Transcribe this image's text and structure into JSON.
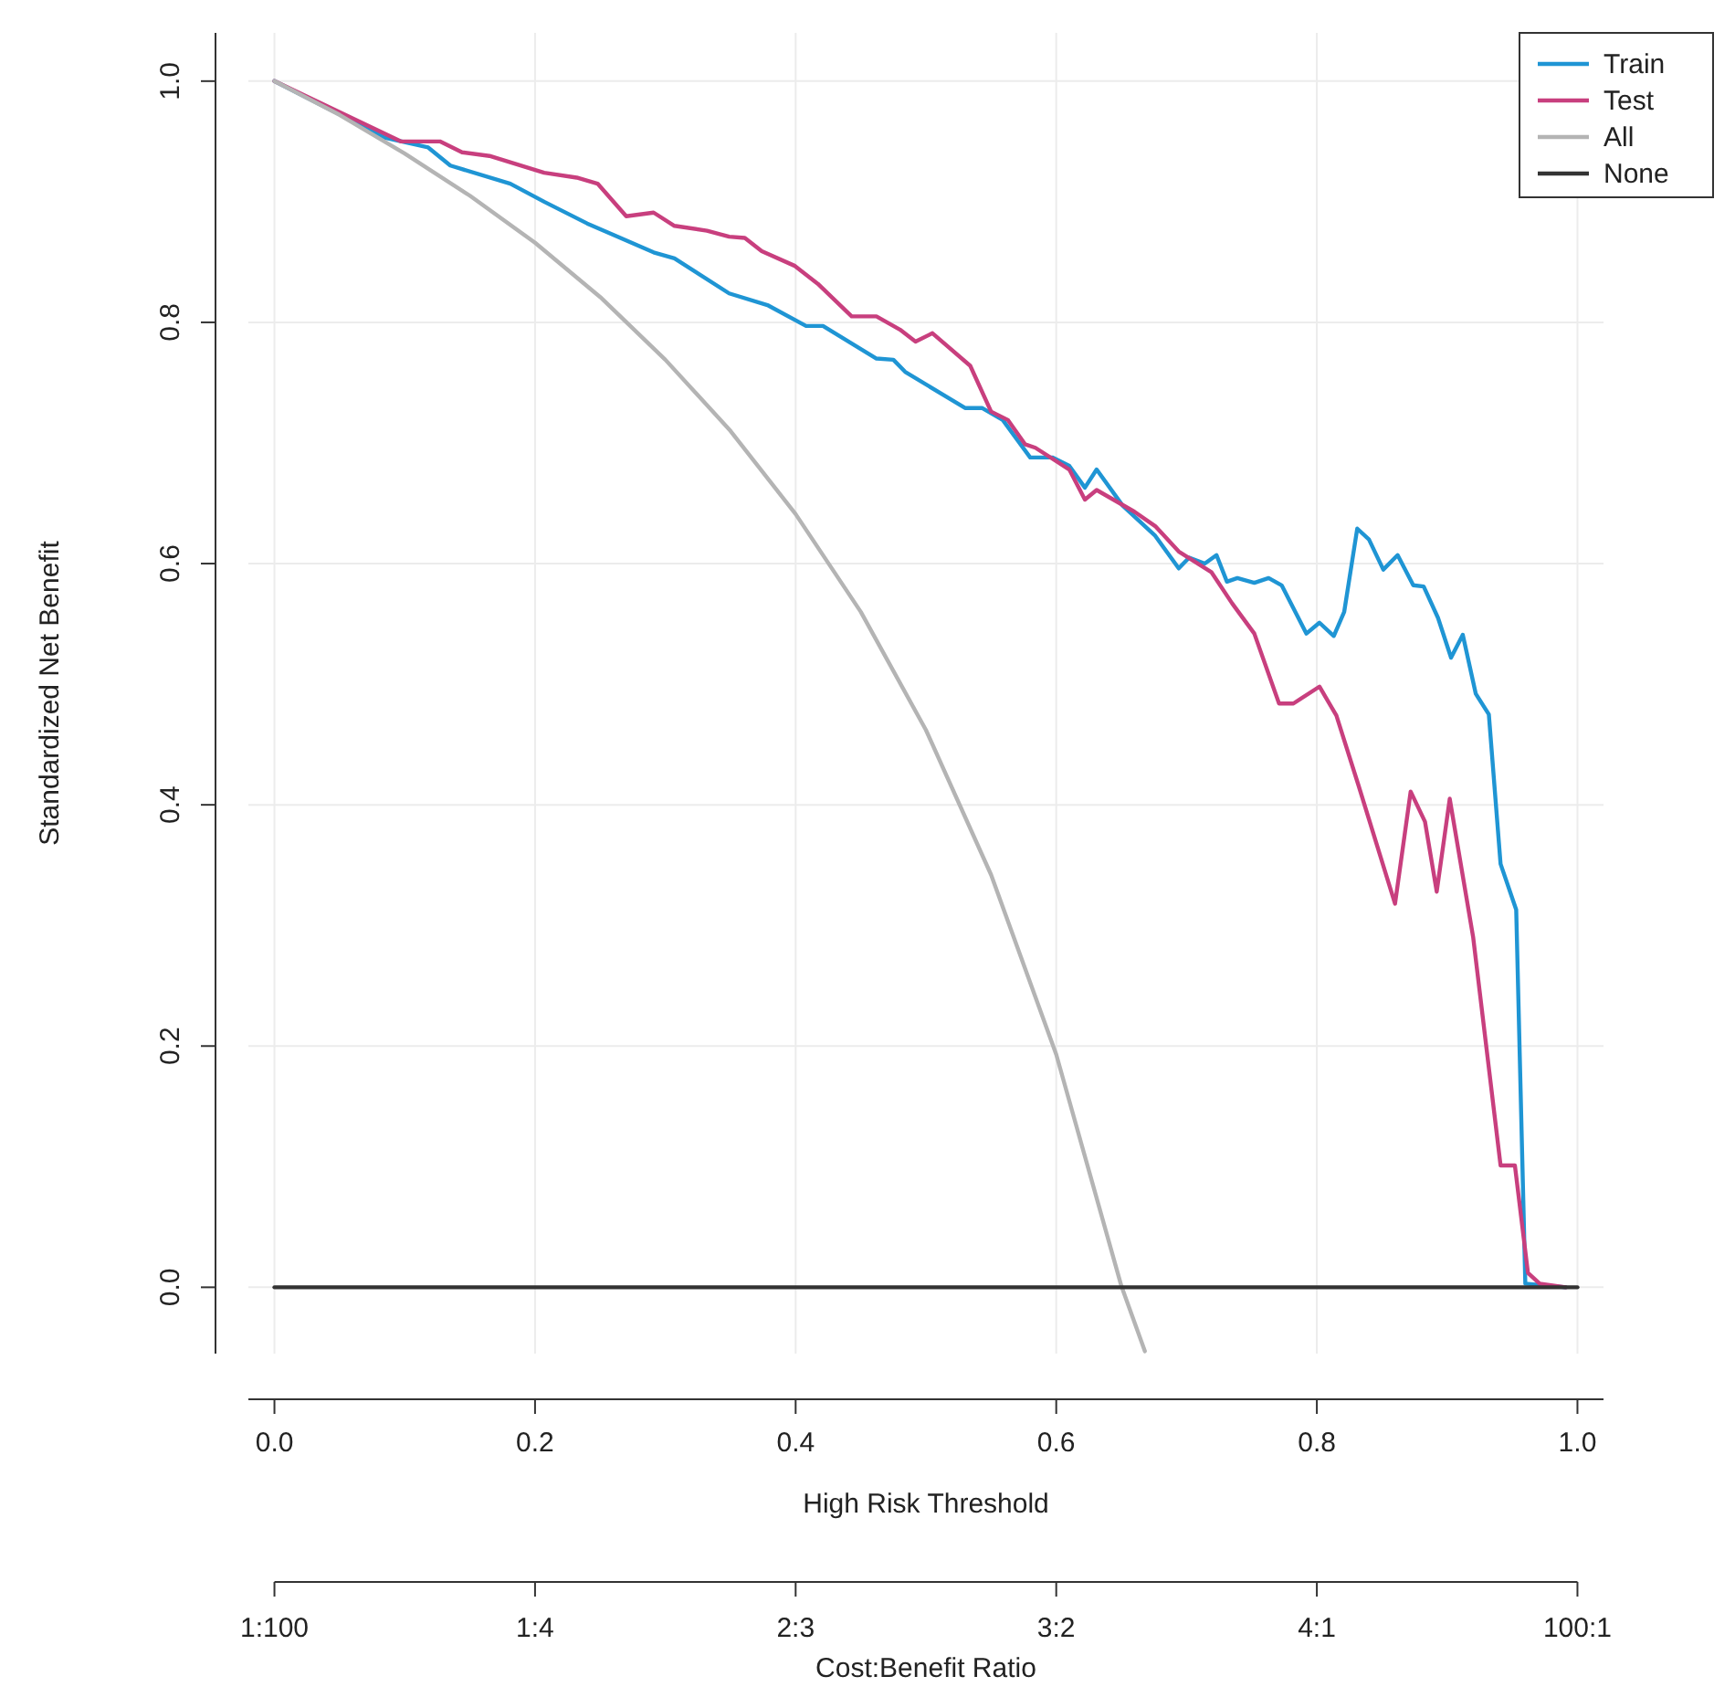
{
  "chart_data": {
    "type": "line",
    "xlabel": "High Risk Threshold",
    "ylabel": "Standardized Net Benefit",
    "xlim": [
      -0.02,
      1.02
    ],
    "xticks": [
      {
        "value": 0,
        "label": "0.0"
      },
      {
        "value": 0.2,
        "label": "0.2"
      },
      {
        "value": 0.4,
        "label": "0.4"
      },
      {
        "value": 0.6,
        "label": "0.6"
      },
      {
        "value": 0.8,
        "label": "0.8"
      },
      {
        "value": 1,
        "label": "1.0"
      }
    ],
    "annotations": [
      "1:100",
      "1:4",
      "2:3",
      "3:2",
      "4:1",
      "100:1",
      "Cost:Benefit Ratio"
    ],
    "ylim": [
      -0.055,
      1.04
    ],
    "yticks": [
      {
        "value": 0,
        "label": "0.0"
      },
      {
        "value": 0.2,
        "label": "0.2"
      },
      {
        "value": 0.4,
        "label": "0.4"
      },
      {
        "value": 0.6,
        "label": "0.6"
      },
      {
        "value": 0.8,
        "label": "0.8"
      },
      {
        "value": 1,
        "label": "1.0"
      }
    ],
    "grid": true,
    "legend": "top right",
    "series": [
      {
        "name": "Train",
        "color": "#1f95d4",
        "x": [
          0,
          0.085,
          0.118,
          0.135,
          0.181,
          0.207,
          0.24,
          0.291,
          0.307,
          0.349,
          0.379,
          0.408,
          0.421,
          0.462,
          0.475,
          0.484,
          0.53,
          0.543,
          0.559,
          0.58,
          0.597,
          0.61,
          0.622,
          0.631,
          0.651,
          0.676,
          0.694,
          0.702,
          0.714,
          0.723,
          0.731,
          0.739,
          0.752,
          0.763,
          0.773,
          0.792,
          0.802,
          0.813,
          0.821,
          0.831,
          0.84,
          0.851,
          0.862,
          0.874,
          0.882,
          0.893,
          0.903,
          0.912,
          0.922,
          0.932,
          0.941,
          0.953,
          0.96,
          0.991
        ],
        "values": [
          1.0,
          0.953,
          0.945,
          0.93,
          0.915,
          0.9,
          0.882,
          0.858,
          0.853,
          0.824,
          0.814,
          0.797,
          0.797,
          0.77,
          0.769,
          0.759,
          0.729,
          0.729,
          0.719,
          0.688,
          0.688,
          0.681,
          0.663,
          0.678,
          0.648,
          0.623,
          0.596,
          0.605,
          0.6,
          0.607,
          0.585,
          0.588,
          0.584,
          0.588,
          0.582,
          0.542,
          0.551,
          0.54,
          0.56,
          0.629,
          0.62,
          0.595,
          0.607,
          0.582,
          0.581,
          0.555,
          0.522,
          0.541,
          0.492,
          0.475,
          0.351,
          0.313,
          0.003,
          0
        ]
      },
      {
        "name": "Test",
        "color": "#c83f7e",
        "x": [
          0,
          0.097,
          0.127,
          0.144,
          0.165,
          0.207,
          0.232,
          0.248,
          0.27,
          0.291,
          0.307,
          0.332,
          0.349,
          0.361,
          0.374,
          0.399,
          0.417,
          0.443,
          0.462,
          0.48,
          0.492,
          0.505,
          0.534,
          0.55,
          0.563,
          0.576,
          0.584,
          0.61,
          0.622,
          0.631,
          0.66,
          0.676,
          0.694,
          0.719,
          0.735,
          0.752,
          0.771,
          0.782,
          0.802,
          0.815,
          0.832,
          0.86,
          0.872,
          0.883,
          0.892,
          0.902,
          0.92,
          0.941,
          0.952,
          0.962,
          0.971,
          0.991
        ],
        "values": [
          1.0,
          0.95,
          0.95,
          0.941,
          0.938,
          0.924,
          0.92,
          0.915,
          0.888,
          0.891,
          0.88,
          0.876,
          0.871,
          0.87,
          0.859,
          0.847,
          0.832,
          0.805,
          0.805,
          0.794,
          0.784,
          0.791,
          0.764,
          0.726,
          0.719,
          0.699,
          0.696,
          0.678,
          0.653,
          0.661,
          0.643,
          0.631,
          0.61,
          0.593,
          0.567,
          0.542,
          0.484,
          0.484,
          0.498,
          0.474,
          0.416,
          0.318,
          0.411,
          0.386,
          0.328,
          0.405,
          0.29,
          0.101,
          0.101,
          0.012,
          0.003,
          0
        ]
      },
      {
        "name": "All",
        "color": "#b4b4b4",
        "x": [
          0,
          0.05,
          0.1,
          0.15,
          0.2,
          0.25,
          0.3,
          0.35,
          0.4,
          0.45,
          0.5,
          0.55,
          0.6,
          0.65,
          0.668
        ],
        "values": [
          1,
          0.972,
          0.94,
          0.905,
          0.866,
          0.821,
          0.769,
          0.71,
          0.641,
          0.56,
          0.462,
          0.342,
          0.193,
          0.001,
          -0.053
        ]
      },
      {
        "name": "None",
        "color": "#333333",
        "x": [
          0,
          1
        ],
        "values": [
          0,
          0
        ]
      }
    ]
  }
}
